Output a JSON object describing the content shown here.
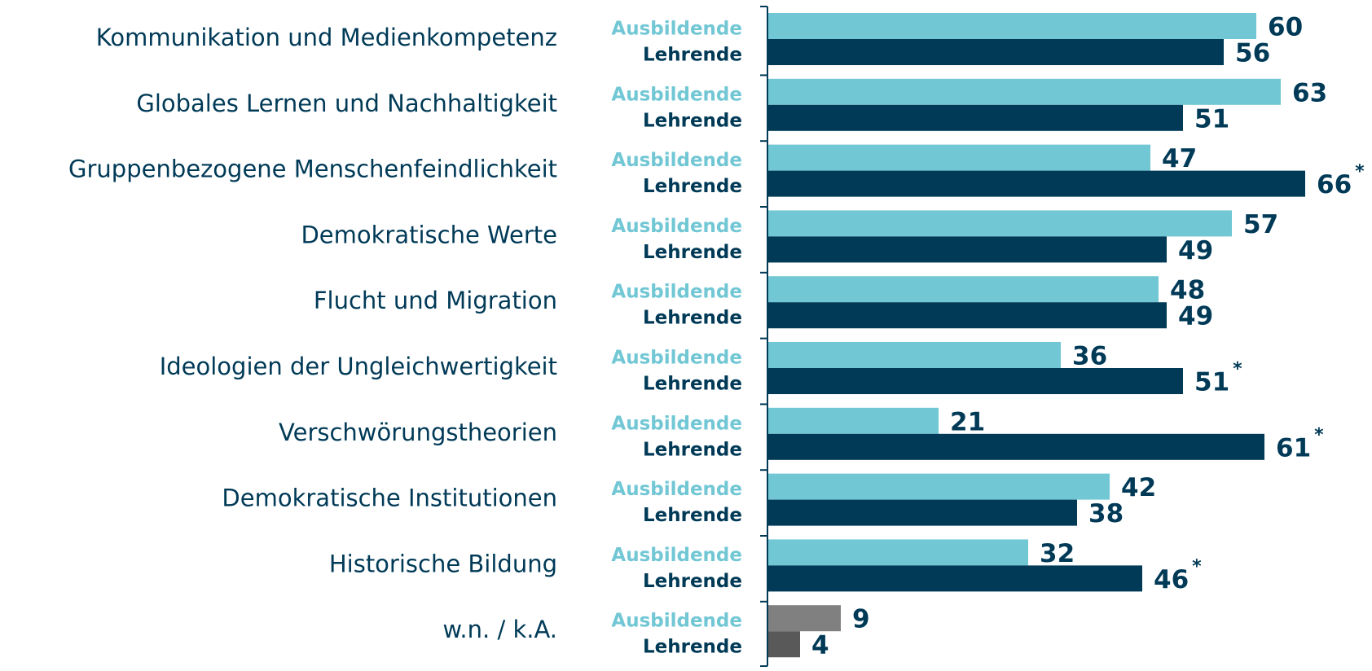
{
  "chart_data": {
    "type": "hbar",
    "categories": [
      "Kommunikation und Medienkompetenz",
      "Globales Lernen und Nachhaltigkeit",
      "Gruppenbezogene Menschenfeindlichkeit",
      "Demokratische Werte",
      "Flucht und Migration",
      "Ideologien der Ungleichwertigkeit",
      "Verschwörungstheorien",
      "Demokratische Institutionen",
      "Historische Bildung",
      "w.n. / k.A."
    ],
    "series": [
      {
        "name": "Ausbildende",
        "color": "#72c7d5",
        "values": [
          60,
          63,
          47,
          57,
          48,
          36,
          21,
          42,
          32,
          9
        ],
        "point_colors": [
          null,
          null,
          null,
          null,
          null,
          null,
          null,
          null,
          null,
          "#808080"
        ]
      },
      {
        "name": "Lehrende",
        "color": "#003a57",
        "values": [
          56,
          51,
          66,
          49,
          49,
          51,
          61,
          38,
          46,
          4
        ],
        "point_colors": [
          null,
          null,
          null,
          null,
          null,
          null,
          null,
          null,
          null,
          "#595959"
        ],
        "significance": [
          null,
          null,
          "*",
          null,
          null,
          "*",
          "*",
          null,
          "*",
          null
        ]
      }
    ],
    "xlim": [
      0,
      74
    ]
  }
}
